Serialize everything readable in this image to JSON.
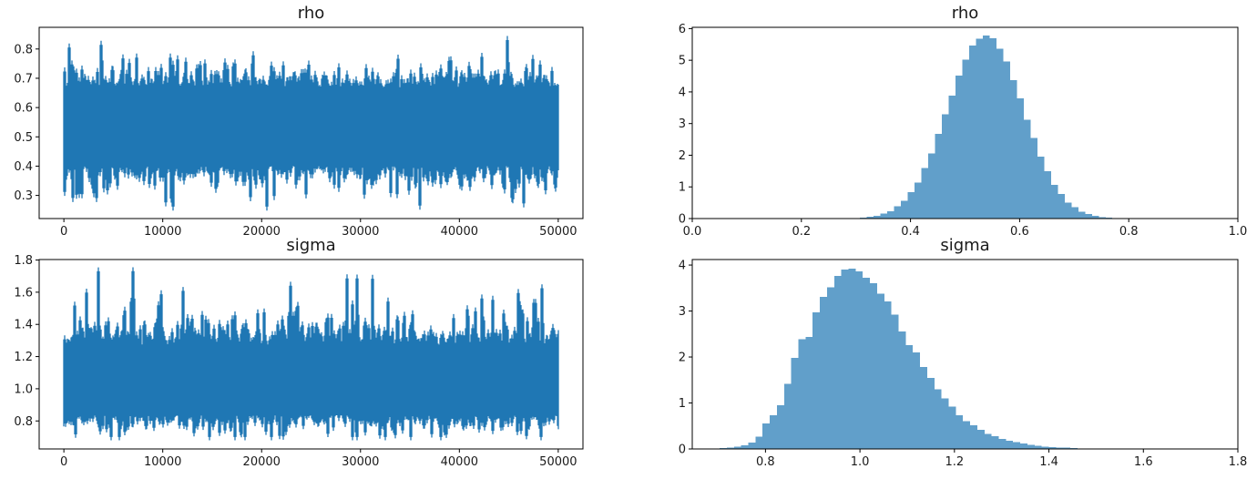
{
  "figure": {
    "background": "#ffffff",
    "trace_color": "#1f77b4",
    "hist_color": "#619fca",
    "spine_color": "#000000",
    "text_color": "#1a1a1a"
  },
  "chart_data": [
    {
      "id": "rho-trace",
      "type": "line",
      "title": "rho",
      "xlabel": "",
      "ylabel": "",
      "xlim": [
        -2500,
        52500
      ],
      "ylim": [
        0.221,
        0.874
      ],
      "grid": false,
      "legend": "none",
      "xticks": {
        "values": [
          0,
          10000,
          20000,
          30000,
          40000,
          50000
        ],
        "labels": [
          "0",
          "10000",
          "20000",
          "30000",
          "40000",
          "50000"
        ]
      },
      "yticks": {
        "values": [
          0.3,
          0.4,
          0.5,
          0.6,
          0.7,
          0.8
        ],
        "labels": [
          "0.3",
          "0.4",
          "0.5",
          "0.6",
          "0.7",
          "0.8"
        ]
      },
      "series_summary": {
        "kind": "mcmc-trace-min-max-band",
        "n_samples": 50000,
        "x_range": [
          0,
          50000
        ],
        "mean": 0.535,
        "sd": 0.069,
        "dense_band": [
          0.38,
          0.7
        ],
        "observed_min": 0.25,
        "observed_max": 0.845
      },
      "render": {
        "seed": 1234,
        "mean": 0.535,
        "sd_up": 0.069,
        "sd_dn": 0.069,
        "base": 1.95,
        "tex_up": 0.42,
        "tex_dn": 0.42,
        "capE_up": 6.4,
        "capE_dn": 5.6,
        "clip": [
          0.248,
          0.845
        ]
      }
    },
    {
      "id": "rho-hist",
      "type": "bar",
      "title": "rho",
      "xlabel": "",
      "ylabel": "",
      "xlim": [
        0.0,
        1.0
      ],
      "ylim": [
        0,
        6.04
      ],
      "grid": false,
      "legend": "none",
      "xticks": {
        "values": [
          0.0,
          0.2,
          0.4,
          0.6,
          0.8,
          1.0
        ],
        "labels": [
          "0.0",
          "0.2",
          "0.4",
          "0.6",
          "0.8",
          "1.0"
        ]
      },
      "yticks": {
        "values": [
          0,
          1,
          2,
          3,
          4,
          5,
          6
        ],
        "labels": [
          "0",
          "1",
          "2",
          "3",
          "4",
          "5",
          "6"
        ]
      },
      "bin_start": 0.295,
      "bin_width": 0.0125,
      "heights": [
        0.02,
        0.03,
        0.06,
        0.09,
        0.16,
        0.23,
        0.39,
        0.56,
        0.84,
        1.14,
        1.6,
        2.06,
        2.67,
        3.3,
        3.88,
        4.52,
        5.02,
        5.47,
        5.68,
        5.78,
        5.69,
        5.36,
        4.96,
        4.37,
        3.79,
        3.12,
        2.54,
        1.95,
        1.5,
        1.07,
        0.78,
        0.51,
        0.36,
        0.21,
        0.14,
        0.09,
        0.05,
        0.03,
        0.02,
        0.01
      ],
      "peak": {
        "x": 0.54,
        "density": 5.78
      }
    },
    {
      "id": "sigma-trace",
      "type": "line",
      "title": "sigma",
      "xlabel": "",
      "ylabel": "",
      "xlim": [
        -2500,
        52500
      ],
      "ylim": [
        0.626,
        1.803
      ],
      "grid": false,
      "legend": "none",
      "xticks": {
        "values": [
          0,
          10000,
          20000,
          30000,
          40000,
          50000
        ],
        "labels": [
          "0",
          "10000",
          "20000",
          "30000",
          "40000",
          "50000"
        ]
      },
      "yticks": {
        "values": [
          0.8,
          1.0,
          1.2,
          1.4,
          1.6,
          1.8
        ],
        "labels": [
          "0.8",
          "1.0",
          "1.2",
          "1.4",
          "1.6",
          "1.8"
        ]
      },
      "series_summary": {
        "kind": "mcmc-trace-min-max-band",
        "n_samples": 50000,
        "x_range": [
          0,
          50000
        ],
        "mean": 1.035,
        "sd": 0.11,
        "dense_band": [
          0.78,
          1.33
        ],
        "observed_min": 0.68,
        "observed_max": 1.75
      },
      "render": {
        "seed": 99,
        "mean": 1.035,
        "sd_up": 0.122,
        "sd_dn": 0.102,
        "base": 1.95,
        "tex_up": 0.62,
        "tex_dn": 0.42,
        "capE_up": 6.4,
        "capE_dn": 5.0,
        "clip": [
          0.68,
          1.755
        ]
      }
    },
    {
      "id": "sigma-hist",
      "type": "bar",
      "title": "sigma",
      "xlabel": "",
      "ylabel": "",
      "xlim": [
        0.645,
        1.8
      ],
      "ylim": [
        0,
        4.12
      ],
      "grid": false,
      "legend": "none",
      "xticks": {
        "values": [
          0.8,
          1.0,
          1.2,
          1.4,
          1.6,
          1.8
        ],
        "labels": [
          "0.8",
          "1.0",
          "1.2",
          "1.4",
          "1.6",
          "1.8"
        ]
      },
      "yticks": {
        "values": [
          0,
          1,
          2,
          3,
          4
        ],
        "labels": [
          "0",
          "1",
          "2",
          "3",
          "4"
        ]
      },
      "bin_start": 0.703,
      "bin_width": 0.01515,
      "heights": [
        0.02,
        0.03,
        0.05,
        0.08,
        0.14,
        0.27,
        0.55,
        0.73,
        0.95,
        1.42,
        1.98,
        2.39,
        2.44,
        2.97,
        3.31,
        3.52,
        3.76,
        3.9,
        3.92,
        3.86,
        3.72,
        3.61,
        3.38,
        3.21,
        2.92,
        2.56,
        2.26,
        2.1,
        1.78,
        1.55,
        1.3,
        1.1,
        0.92,
        0.73,
        0.6,
        0.52,
        0.42,
        0.33,
        0.28,
        0.22,
        0.18,
        0.15,
        0.12,
        0.09,
        0.07,
        0.05,
        0.04,
        0.03,
        0.03,
        0.02
      ],
      "peak": {
        "x": 0.98,
        "density": 3.92
      }
    }
  ]
}
